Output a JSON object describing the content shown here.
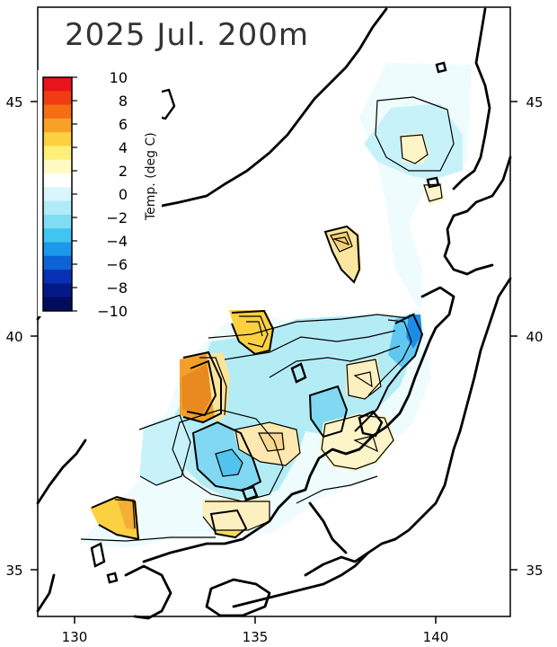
{
  "title": "2025 Jul. 200m",
  "colorbar": {
    "unit_label": "Temp. (deg C)",
    "ticks": [
      "10",
      "8",
      "6",
      "4",
      "2",
      "0",
      "−2",
      "−4",
      "−6",
      "−8",
      "−10"
    ],
    "colors": [
      "#e8141c",
      "#f03c14",
      "#f46e14",
      "#f8a028",
      "#fcd040",
      "#fdf07a",
      "#fffac4",
      "#ffffff",
      "#d8f6fc",
      "#b0ecf8",
      "#80dcf4",
      "#40c4f0",
      "#1c98e8",
      "#0c64d4",
      "#0830b4",
      "#041888",
      "#020c5c"
    ]
  },
  "axes": {
    "x_ticks": [
      "130",
      "135",
      "140"
    ],
    "y_ticks_left": [
      "45",
      "40",
      "35"
    ],
    "y_ticks_right": [
      "45",
      "40",
      "35"
    ]
  },
  "colors": {
    "background": "#ffffff",
    "land_outline": "#000000",
    "anomaly_neutral": "#eefcfe",
    "anomaly_cool": "#b4ecf6",
    "anomaly_warm": "#fdf4c8"
  }
}
